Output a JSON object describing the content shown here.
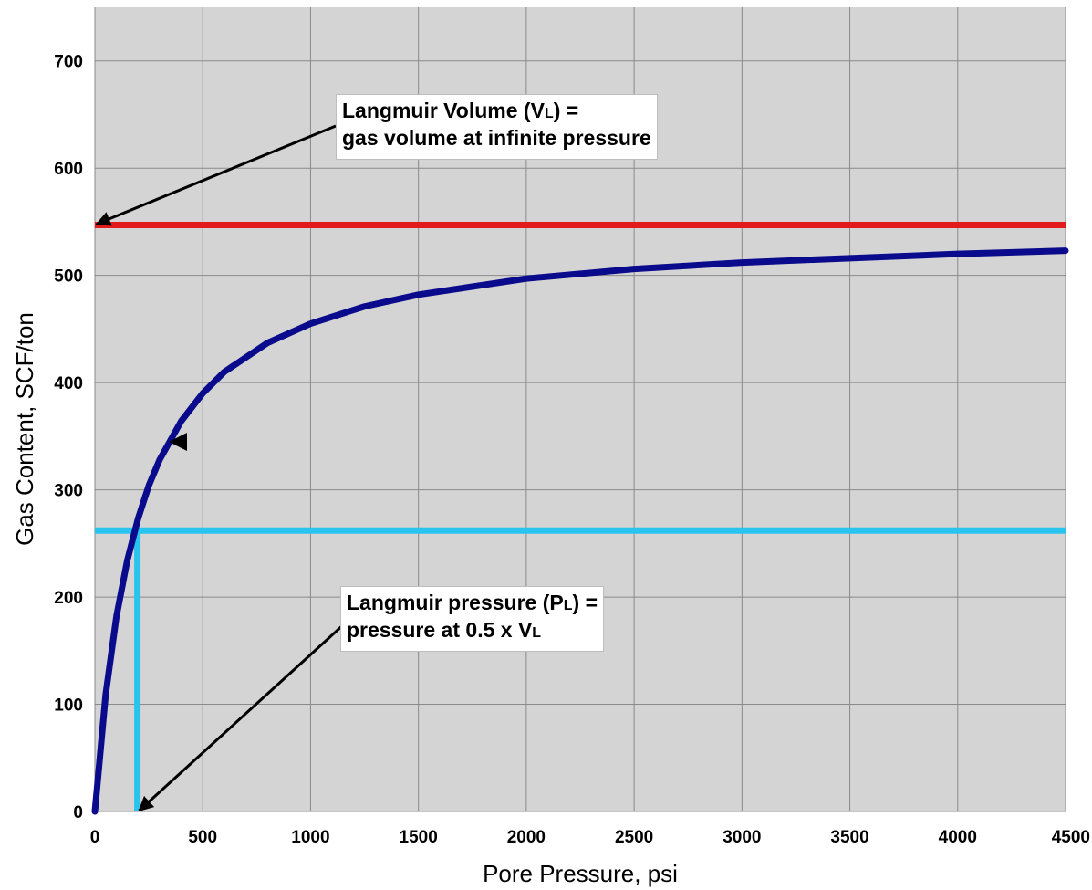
{
  "chart_data": {
    "type": "line",
    "xlabel": "Pore Pressure, psi",
    "ylabel": "Gas Content, SCF/ton",
    "xlim": [
      0,
      4500
    ],
    "ylim": [
      0,
      750
    ],
    "x_ticks": [
      0,
      500,
      1000,
      1500,
      2000,
      2500,
      3000,
      3500,
      4000,
      4500
    ],
    "y_ticks": [
      0,
      100,
      200,
      300,
      400,
      500,
      600,
      700
    ],
    "grid": true,
    "plot_background": "#d4d4d4",
    "series": [
      {
        "color": "#0a0a8c",
        "x": [
          0,
          50,
          100,
          150,
          200,
          250,
          300,
          400,
          500,
          600,
          800,
          1000,
          1250,
          1500,
          2000,
          2500,
          3000,
          3500,
          4000,
          4500
        ],
        "y": [
          0,
          109,
          182,
          234,
          273,
          304,
          328,
          364,
          390,
          410,
          437,
          455,
          471,
          482,
          497,
          506,
          512,
          516,
          520,
          523
        ]
      }
    ],
    "reference_lines": [
      {
        "orientation": "horizontal",
        "value": 547,
        "color": "#e31a1c"
      },
      {
        "orientation": "horizontal",
        "value": 262,
        "color": "#29c4ee"
      },
      {
        "orientation": "vertical",
        "value": 197,
        "from": 0,
        "to": 262,
        "color": "#29c4ee"
      }
    ],
    "annotations": [
      {
        "lines": [
          {
            "prefix": "Langmuir Volume (V",
            "sub": "L",
            "suffix": ") ="
          },
          {
            "prefix": "gas volume at infinite pressure",
            "sub": "",
            "suffix": ""
          }
        ],
        "arrow_to": {
          "x": 0,
          "y": 547
        }
      },
      {
        "lines": [
          {
            "prefix": "Langmuir pressure (P",
            "sub": "L",
            "suffix": ") ="
          },
          {
            "prefix": "pressure at 0.5 x V",
            "sub": "L",
            "suffix": ""
          }
        ],
        "arrow_to": {
          "x": 197,
          "y": 0
        }
      }
    ]
  }
}
